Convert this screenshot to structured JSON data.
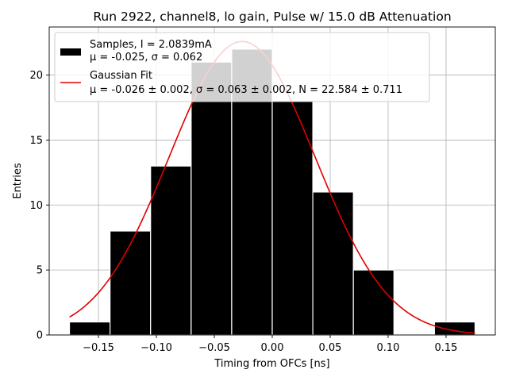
{
  "chart_data": {
    "type": "bar",
    "title": "Run 2922, channel8, lo gain, Pulse w/ 15.0 dB Attenuation",
    "xlabel": "Timing from OFCs [ns]",
    "ylabel": "Entries",
    "xlim": [
      -0.1925,
      0.1925
    ],
    "ylim": [
      0,
      23.7
    ],
    "xticks": [
      -0.15,
      -0.1,
      -0.05,
      0.0,
      0.05,
      0.1,
      0.15
    ],
    "xtick_labels": [
      "−0.15",
      "−0.10",
      "−0.05",
      "0.00",
      "0.05",
      "0.10",
      "0.15"
    ],
    "yticks": [
      0,
      5,
      10,
      15,
      20
    ],
    "ytick_labels": [
      "0",
      "5",
      "10",
      "15",
      "20"
    ],
    "grid": true,
    "legend_position": "top-left",
    "histogram": {
      "bin_edges": [
        -0.175,
        -0.14,
        -0.105,
        -0.07,
        -0.035,
        0.0,
        0.035,
        0.07,
        0.105,
        0.14,
        0.175
      ],
      "counts": [
        1,
        8,
        13,
        21,
        22,
        18,
        11,
        5,
        0,
        1
      ],
      "color": "#000000",
      "edgecolor": "#ffffff"
    },
    "fit": {
      "mu": -0.026,
      "sigma": 0.063,
      "N": 22.584,
      "x_range": [
        -0.175,
        0.175
      ],
      "color": "#e00000"
    },
    "legend": [
      {
        "line1": "Samples, I = 2.0839mA",
        "line2": "μ = -0.025, σ = 0.062",
        "swatch": "box",
        "color": "#000000"
      },
      {
        "line1": "Gaussian Fit",
        "line2": "μ = -0.026 ± 0.002, σ = 0.063 ± 0.002, N = 22.584 ± 0.711",
        "swatch": "line",
        "color": "#e00000"
      }
    ]
  }
}
